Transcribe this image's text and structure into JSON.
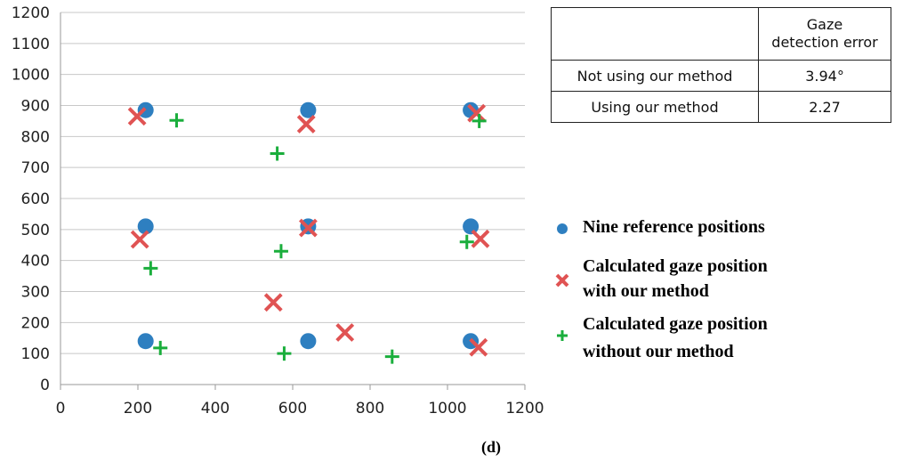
{
  "chart_data": {
    "type": "scatter",
    "title": "",
    "xlabel": "",
    "ylabel": "",
    "xlim": [
      0,
      1200
    ],
    "ylim": [
      0,
      1200
    ],
    "xticks": [
      0,
      200,
      400,
      600,
      800,
      1000,
      1200
    ],
    "yticks": [
      0,
      100,
      200,
      300,
      400,
      500,
      600,
      700,
      800,
      900,
      1000,
      1100,
      1200
    ],
    "grid": "horizontal",
    "legend_position": "right",
    "series": [
      {
        "name": "Nine reference positions",
        "marker": "circle",
        "color": "#2e7fc0",
        "points": [
          [
            220,
            885
          ],
          [
            640,
            885
          ],
          [
            1060,
            885
          ],
          [
            220,
            510
          ],
          [
            640,
            510
          ],
          [
            1060,
            510
          ],
          [
            220,
            140
          ],
          [
            640,
            140
          ],
          [
            1060,
            140
          ]
        ]
      },
      {
        "name": "Calculated gaze position with our method",
        "marker": "x",
        "color": "#e05353",
        "points": [
          [
            198,
            865
          ],
          [
            635,
            840
          ],
          [
            1075,
            875
          ],
          [
            205,
            468
          ],
          [
            640,
            505
          ],
          [
            1085,
            470
          ],
          [
            550,
            265
          ],
          [
            735,
            168
          ],
          [
            1080,
            120
          ]
        ]
      },
      {
        "name": "Calculated gaze position without our method",
        "marker": "plus",
        "color": "#1aae3c",
        "points": [
          [
            300,
            852
          ],
          [
            560,
            745
          ],
          [
            1082,
            850
          ],
          [
            233,
            375
          ],
          [
            570,
            430
          ],
          [
            1050,
            460
          ],
          [
            258,
            118
          ],
          [
            578,
            100
          ],
          [
            857,
            90
          ]
        ]
      }
    ]
  },
  "table": {
    "header": [
      "",
      "Gaze detection error"
    ],
    "rows": [
      {
        "label": "Not using our method",
        "value": "3.94°"
      },
      {
        "label": "Using our method",
        "value": "2.27"
      }
    ]
  },
  "caption": "(d)"
}
